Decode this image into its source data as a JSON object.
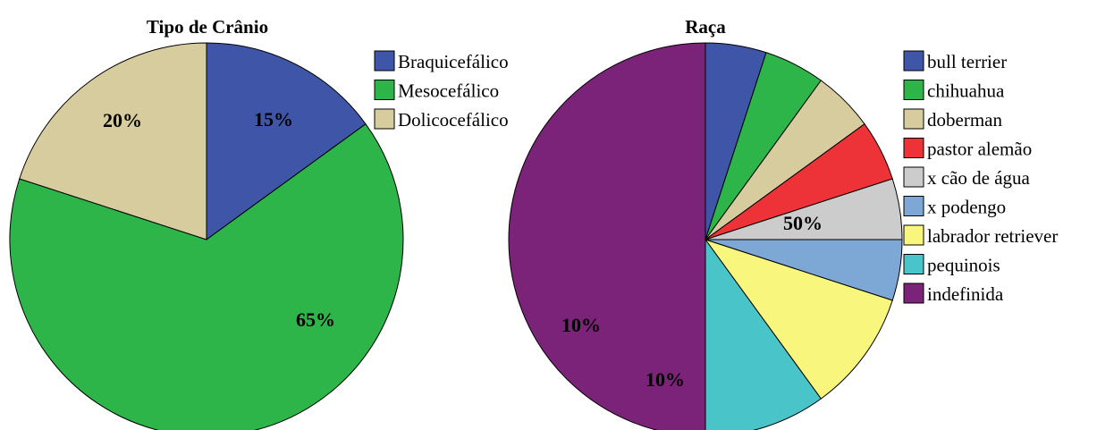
{
  "chart_data": [
    {
      "type": "pie",
      "title": "Tipo de Crânio",
      "legend_position": "top-right",
      "slices": [
        {
          "name": "Braquicefálico",
          "value": 15,
          "label": "15%",
          "color": "#3F55A8"
        },
        {
          "name": "Mesocefálico",
          "value": 65,
          "label": "65%",
          "color": "#2DB54A"
        },
        {
          "name": "Dolicocefálico",
          "value": 20,
          "label": "20%",
          "color": "#D6CC9E"
        }
      ]
    },
    {
      "type": "pie",
      "title": "Raça",
      "legend_position": "top-right",
      "slices": [
        {
          "name": "bull terrier",
          "value": 5,
          "label": "",
          "color": "#3F55A8"
        },
        {
          "name": "chihuahua",
          "value": 5,
          "label": "",
          "color": "#2DB54A"
        },
        {
          "name": "doberman",
          "value": 5,
          "label": "",
          "color": "#D6CC9E"
        },
        {
          "name": "pastor alemão",
          "value": 5,
          "label": "",
          "color": "#EE3338"
        },
        {
          "name": "x cão de água",
          "value": 5,
          "label": "",
          "color": "#CCCCCC"
        },
        {
          "name": "x podengo",
          "value": 5,
          "label": "",
          "color": "#7DA8D6"
        },
        {
          "name": "labrador retriever",
          "value": 10,
          "label": "10%",
          "color": "#F8F67D"
        },
        {
          "name": "pequinois",
          "value": 10,
          "label": "10%",
          "color": "#49C4C8"
        },
        {
          "name": "indefinida",
          "value": 50,
          "label": "50%",
          "color": "#7A2378"
        }
      ]
    }
  ]
}
